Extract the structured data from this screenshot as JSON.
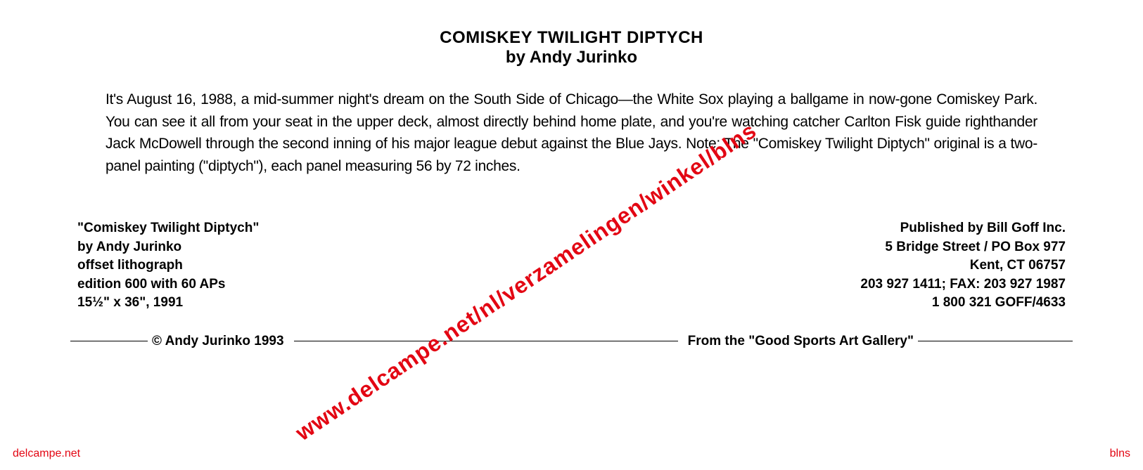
{
  "header": {
    "title": "COMISKEY TWILIGHT DIPTYCH",
    "author": "by Andy Jurinko"
  },
  "description": "It's August 16, 1988, a mid-summer night's dream on the South Side of Chicago—the White Sox playing a ballgame in now-gone Comiskey Park. You can see it all from your seat in the upper deck, almost directly behind home plate, and you're watching catcher Carlton Fisk guide righthander Jack McDowell through the second inning of his major league debut against the Blue Jays. Note: The \"Comiskey Twilight Diptych\" original is a two-panel painting (\"diptych\"), each panel measuring 56 by 72 inches.",
  "artwork": {
    "name": "\"Comiskey Twilight Diptych\"",
    "artist": "by Andy Jurinko",
    "medium": "offset lithograph",
    "edition": "edition 600 with 60 APs",
    "dimensions_year": "15½\" x 36\", 1991"
  },
  "publisher": {
    "name": "Published by Bill Goff Inc.",
    "address1": "5 Bridge Street / PO Box 977",
    "address2": "Kent, CT 06757",
    "phone_fax": "203 927 1411; FAX: 203 927 1987",
    "toll_free": "1 800 321 GOFF/4633"
  },
  "footer": {
    "copyright": "© Andy Jurinko 1993",
    "gallery": "From the \"Good Sports Art Gallery\""
  },
  "watermark": {
    "diagonal": "www.delcampe.net/nl/verzamelingen/winkel/blns",
    "corner": "delcampe.net",
    "right": "blns"
  },
  "style": {
    "background_color": "#ffffff",
    "text_color": "#000000",
    "watermark_color": "#e30613",
    "title_fontsize": 24,
    "body_fontsize": 21,
    "info_fontsize": 19
  }
}
